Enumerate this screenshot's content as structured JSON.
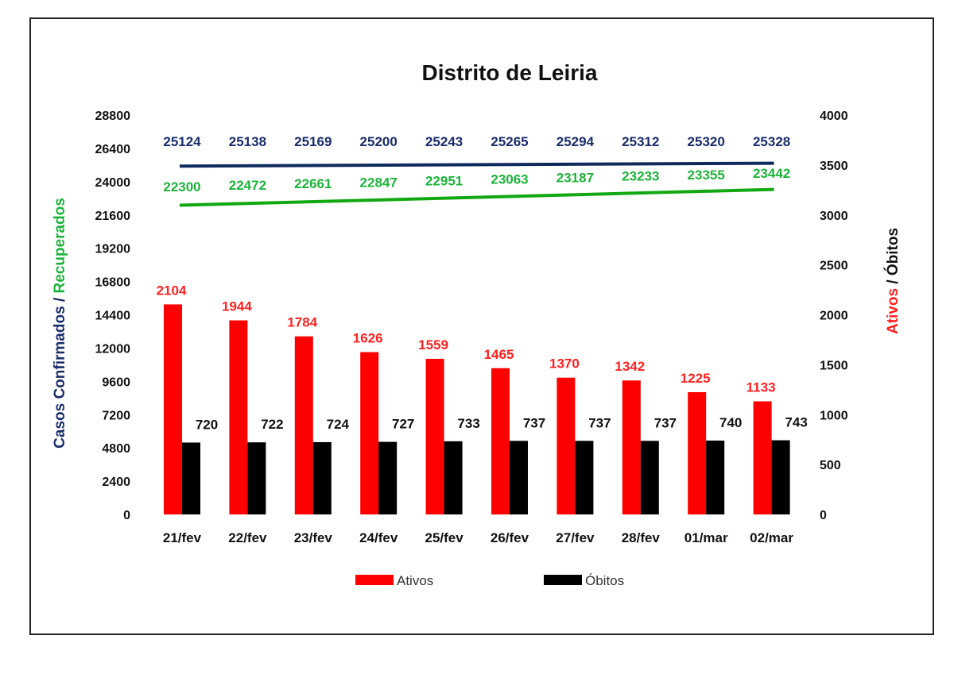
{
  "chart_data": {
    "type": "bar+line",
    "title": "Distrito de Leiria",
    "categories": [
      "21/fev",
      "22/fev",
      "23/fev",
      "24/fev",
      "25/fev",
      "26/fev",
      "27/fev",
      "28/fev",
      "01/mar",
      "02/mar"
    ],
    "left_axis": {
      "label_part1": "Casos Confirmados / ",
      "label_part2": "Recuperados",
      "range": [
        0,
        28800
      ],
      "ticks": [
        "0",
        "2400",
        "4800",
        "7200",
        "9600",
        "12000",
        "14400",
        "16800",
        "19200",
        "21600",
        "24000",
        "26400",
        "28800"
      ]
    },
    "right_axis": {
      "label_part1": "Ativos",
      "label_part2": " / Óbitos",
      "range": [
        0,
        4000
      ],
      "ticks": [
        "0",
        "500",
        "1000",
        "1500",
        "2000",
        "2500",
        "3000",
        "3500",
        "4000"
      ]
    },
    "series": [
      {
        "name": "Ativos",
        "type": "bar",
        "axis": "right",
        "color": "#ff0000",
        "label_color": "#ff2020",
        "values": [
          2104,
          1944,
          1784,
          1626,
          1559,
          1465,
          1370,
          1342,
          1225,
          1133
        ]
      },
      {
        "name": "Óbitos",
        "type": "bar",
        "axis": "right",
        "color": "#000000",
        "label_color": "#111111",
        "values": [
          720,
          722,
          724,
          727,
          733,
          737,
          737,
          737,
          740,
          743
        ]
      },
      {
        "type": "line",
        "axis": "left",
        "color": "#0f2a5c",
        "label_color": "#1a2d6b",
        "values": [
          25124,
          25138,
          25169,
          25200,
          25243,
          25265,
          25294,
          25312,
          25320,
          25328
        ]
      },
      {
        "type": "line",
        "axis": "left",
        "color": "#11a811",
        "label_color": "#1db33a",
        "values": [
          22300,
          22472,
          22661,
          22847,
          22951,
          23063,
          23187,
          23233,
          23355,
          23442
        ]
      }
    ],
    "legend": {
      "position": "bottom",
      "items": [
        "Ativos",
        "Óbitos"
      ]
    },
    "colors": {
      "left_label_part1": "#1a2d6b",
      "left_label_part2": "#1db33a",
      "right_label_part1": "#ff2020",
      "right_label_part2": "#111111"
    },
    "grid": false
  }
}
